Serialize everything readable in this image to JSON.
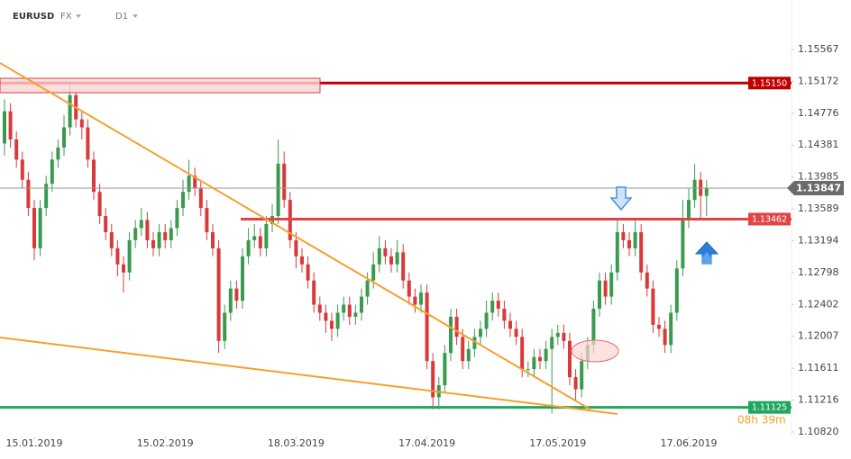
{
  "chart_data": {
    "type": "candlestick",
    "symbol": "EURUSD",
    "market": "FX",
    "timeframe": "D1",
    "up_color": "#3a9b4f",
    "down_color": "#d9393b",
    "open": [
      1.144,
      1.148,
      1.1445,
      1.142,
      1.1395,
      1.136,
      1.131,
      1.136,
      1.139,
      1.142,
      1.1435,
      1.146,
      1.15,
      1.147,
      1.146,
      1.142,
      1.138,
      1.135,
      1.133,
      1.131,
      1.129,
      1.128,
      1.132,
      1.1335,
      1.1345,
      1.132,
      1.131,
      1.133,
      1.132,
      1.1335,
      1.136,
      1.138,
      1.14,
      1.1385,
      1.136,
      1.133,
      1.131,
      1.1195,
      1.123,
      1.126,
      1.1245,
      1.13,
      1.132,
      1.1325,
      1.131,
      1.134,
      1.135,
      1.1415,
      1.137,
      1.132,
      1.13,
      1.129,
      1.127,
      1.124,
      1.123,
      1.122,
      1.121,
      1.123,
      1.124,
      1.1225,
      1.123,
      1.125,
      1.127,
      1.129,
      1.131,
      1.13,
      1.129,
      1.1305,
      1.127,
      1.125,
      1.124,
      1.1255,
      1.117,
      1.1125,
      1.114,
      1.118,
      1.1225,
      1.12,
      1.117,
      1.1185,
      1.12,
      1.121,
      1.123,
      1.1245,
      1.1235,
      1.122,
      1.121,
      1.12,
      1.116,
      1.116,
      1.1175,
      1.117,
      1.1185,
      1.12,
      1.1205,
      1.1195,
      1.115,
      1.1135,
      1.117,
      1.119,
      1.1235,
      1.127,
      1.125,
      1.128,
      1.133,
      1.132,
      1.131,
      1.133,
      1.128,
      1.126,
      1.1215,
      1.121,
      1.119,
      1.123,
      1.1285,
      1.1345,
      1.137,
      1.1395,
      1.1375
    ],
    "high": [
      1.1495,
      1.149,
      1.1455,
      1.143,
      1.1405,
      1.137,
      1.137,
      1.14,
      1.143,
      1.1445,
      1.1475,
      1.1515,
      1.1505,
      1.148,
      1.147,
      1.143,
      1.139,
      1.136,
      1.134,
      1.132,
      1.13,
      1.133,
      1.1345,
      1.136,
      1.1355,
      1.133,
      1.134,
      1.134,
      1.1345,
      1.137,
      1.1395,
      1.142,
      1.141,
      1.1395,
      1.137,
      1.134,
      1.132,
      1.124,
      1.127,
      1.127,
      1.131,
      1.1335,
      1.134,
      1.1335,
      1.135,
      1.1365,
      1.1445,
      1.143,
      1.138,
      1.133,
      1.131,
      1.13,
      1.128,
      1.125,
      1.124,
      1.123,
      1.124,
      1.125,
      1.125,
      1.124,
      1.126,
      1.128,
      1.1305,
      1.1325,
      1.132,
      1.131,
      1.132,
      1.1315,
      1.128,
      1.126,
      1.1265,
      1.1265,
      1.118,
      1.115,
      1.119,
      1.1235,
      1.1235,
      1.121,
      1.1195,
      1.121,
      1.122,
      1.1245,
      1.1255,
      1.1255,
      1.1245,
      1.123,
      1.122,
      1.121,
      1.117,
      1.1185,
      1.1185,
      1.1195,
      1.121,
      1.1215,
      1.1215,
      1.1205,
      1.116,
      1.118,
      1.12,
      1.1245,
      1.128,
      1.128,
      1.129,
      1.1345,
      1.134,
      1.133,
      1.1345,
      1.134,
      1.129,
      1.127,
      1.1225,
      1.122,
      1.124,
      1.1295,
      1.137,
      1.1385,
      1.1415,
      1.1405,
      1.1395
    ],
    "low": [
      1.1425,
      1.1435,
      1.141,
      1.1385,
      1.135,
      1.1295,
      1.13,
      1.135,
      1.138,
      1.141,
      1.1425,
      1.145,
      1.146,
      1.1445,
      1.141,
      1.137,
      1.134,
      1.132,
      1.13,
      1.1275,
      1.1255,
      1.127,
      1.131,
      1.1325,
      1.131,
      1.13,
      1.13,
      1.131,
      1.131,
      1.1325,
      1.135,
      1.137,
      1.1375,
      1.135,
      1.132,
      1.13,
      1.118,
      1.1185,
      1.122,
      1.1235,
      1.1235,
      1.129,
      1.131,
      1.13,
      1.13,
      1.133,
      1.134,
      1.136,
      1.131,
      1.1285,
      1.128,
      1.126,
      1.123,
      1.122,
      1.1205,
      1.1195,
      1.12,
      1.122,
      1.1215,
      1.1215,
      1.122,
      1.124,
      1.126,
      1.128,
      1.129,
      1.128,
      1.128,
      1.126,
      1.124,
      1.123,
      1.123,
      1.116,
      1.111,
      1.111,
      1.113,
      1.117,
      1.119,
      1.116,
      1.116,
      1.1175,
      1.119,
      1.12,
      1.122,
      1.1225,
      1.121,
      1.12,
      1.119,
      1.115,
      1.115,
      1.115,
      1.116,
      1.116,
      1.1105,
      1.119,
      1.1185,
      1.114,
      1.112,
      1.1125,
      1.116,
      1.118,
      1.1225,
      1.124,
      1.124,
      1.127,
      1.131,
      1.13,
      1.13,
      1.127,
      1.125,
      1.1205,
      1.12,
      1.118,
      1.118,
      1.122,
      1.1275,
      1.1335,
      1.136,
      1.1345,
      1.135
    ],
    "close": [
      1.148,
      1.1445,
      1.142,
      1.1395,
      1.136,
      1.131,
      1.136,
      1.139,
      1.142,
      1.1435,
      1.146,
      1.15,
      1.147,
      1.146,
      1.142,
      1.138,
      1.135,
      1.133,
      1.131,
      1.129,
      1.128,
      1.132,
      1.1335,
      1.1345,
      1.132,
      1.131,
      1.133,
      1.132,
      1.1335,
      1.136,
      1.138,
      1.14,
      1.1385,
      1.136,
      1.133,
      1.131,
      1.1195,
      1.123,
      1.126,
      1.1245,
      1.13,
      1.132,
      1.1325,
      1.131,
      1.134,
      1.135,
      1.1415,
      1.137,
      1.132,
      1.13,
      1.129,
      1.127,
      1.124,
      1.123,
      1.122,
      1.121,
      1.123,
      1.124,
      1.1225,
      1.123,
      1.125,
      1.127,
      1.129,
      1.131,
      1.13,
      1.129,
      1.1305,
      1.127,
      1.125,
      1.124,
      1.1255,
      1.117,
      1.1125,
      1.114,
      1.118,
      1.1225,
      1.12,
      1.117,
      1.1185,
      1.12,
      1.121,
      1.123,
      1.1245,
      1.1235,
      1.122,
      1.121,
      1.12,
      1.116,
      1.116,
      1.1175,
      1.117,
      1.1185,
      1.12,
      1.1205,
      1.1195,
      1.115,
      1.1135,
      1.117,
      1.119,
      1.1235,
      1.127,
      1.125,
      1.128,
      1.133,
      1.132,
      1.131,
      1.133,
      1.128,
      1.126,
      1.1215,
      1.121,
      1.119,
      1.123,
      1.1285,
      1.1345,
      1.137,
      1.1395,
      1.1375,
      1.1385
    ],
    "ylim": [
      1.10764,
      1.16181
    ],
    "yticks": [
      1.15567,
      1.15172,
      1.14776,
      1.14381,
      1.13985,
      1.13589,
      1.13194,
      1.12798,
      1.12402,
      1.12007,
      1.11611,
      1.11216,
      {
        "value": 1.1082,
        "label": "1.10820"
      }
    ],
    "xticks": [
      {
        "value": 5,
        "label": "15.01.2019"
      },
      {
        "value": 27,
        "label": "15.02.2019"
      },
      {
        "value": 49,
        "label": "18.03.2019"
      },
      {
        "value": 71,
        "label": "17.04.2019"
      },
      {
        "value": 93,
        "label": "17.05.2019"
      },
      {
        "value": 115,
        "label": "17.06.2019"
      }
    ],
    "levels": [
      {
        "value": 1.1515,
        "label": "1.15150",
        "color": "#c00000"
      },
      {
        "value": 1.13462,
        "color": "#e04545"
      },
      {
        "value": 1.11125,
        "color": "#1fa760"
      }
    ],
    "current": {
      "value": 1.13847,
      "color": "#6b6b6b"
    },
    "countdown": "08h 39m"
  }
}
